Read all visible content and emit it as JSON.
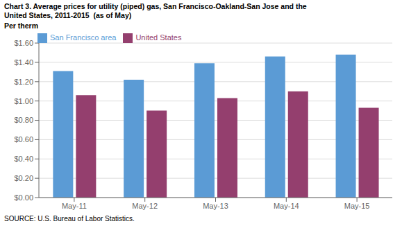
{
  "chart_data": {
    "type": "bar",
    "title": "Chart 3. Average prices for utility (piped) gas, San Francisco-Oakland-San Jose and the\nUnited States, 2011-2015  (as of May)",
    "ylabel": "Per therm",
    "annotations": [
      "SOURCE: U.S. Bureau of Labor Statistics."
    ],
    "categories": [
      "May-11",
      "May-12",
      "May-13",
      "May-14",
      "May-15"
    ],
    "series": [
      {
        "name": "San Francisco area",
        "color": "#5B9BD5",
        "values": [
          1.31,
          1.22,
          1.39,
          1.46,
          1.48
        ]
      },
      {
        "name": "United States",
        "color": "#943F6E",
        "values": [
          1.06,
          0.9,
          1.03,
          1.1,
          0.93
        ]
      }
    ],
    "ylim": [
      0,
      1.6
    ],
    "yticks": [
      {
        "value": 0.0,
        "label": "$0.00"
      },
      {
        "value": 0.2,
        "label": "$0.20"
      },
      {
        "value": 0.4,
        "label": "$0.40"
      },
      {
        "value": 0.6,
        "label": "$0.60"
      },
      {
        "value": 0.8,
        "label": "$0.80"
      },
      {
        "value": 1.0,
        "label": "$1.00"
      },
      {
        "value": 1.2,
        "label": "$1.20"
      },
      {
        "value": 1.4,
        "label": "$1.40"
      },
      {
        "value": 1.6,
        "label": "$1.60"
      }
    ],
    "grid": true,
    "legend": "upper left"
  }
}
